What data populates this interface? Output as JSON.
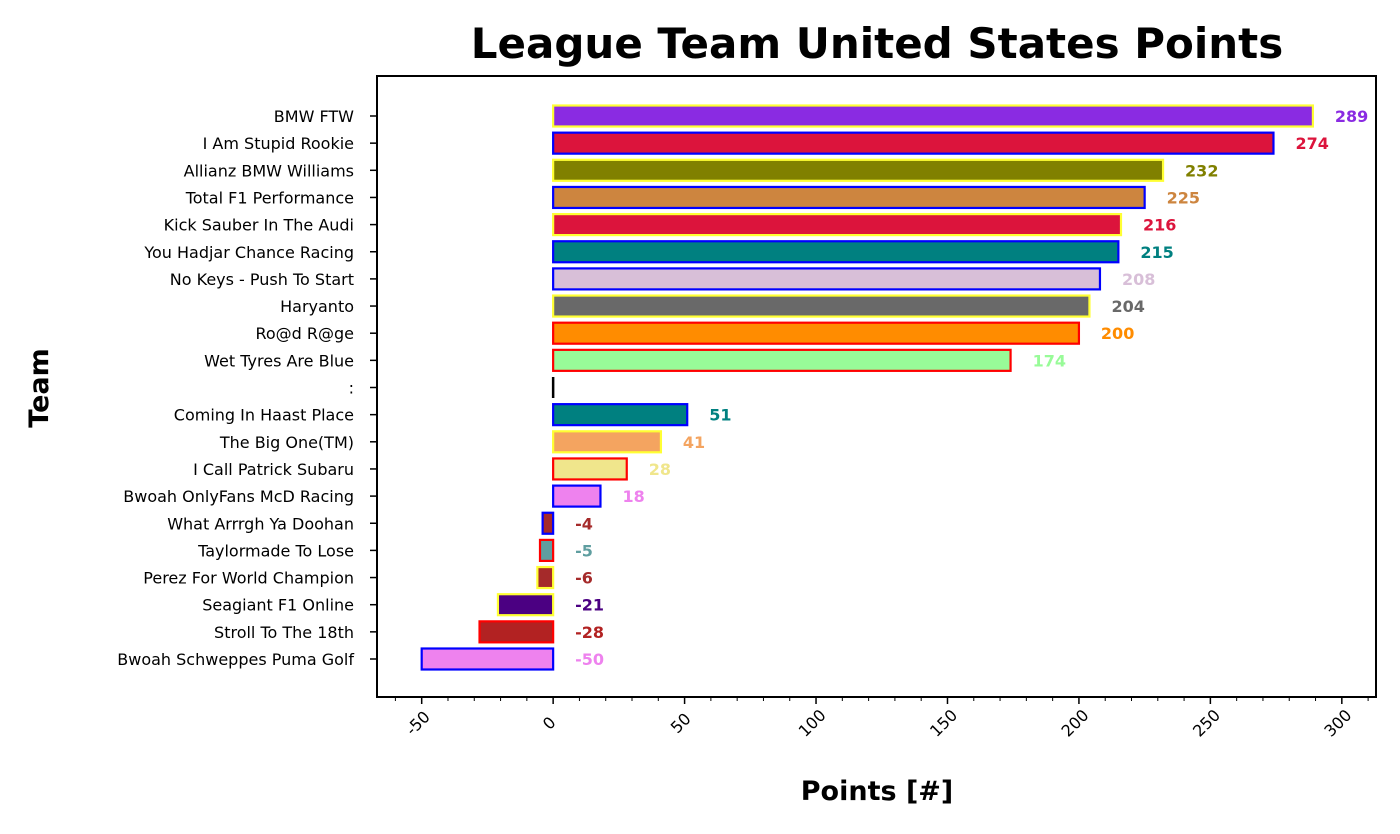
{
  "chart_data": {
    "type": "bar",
    "orientation": "horizontal",
    "title": "League Team United States Points",
    "xlabel": "Points [#]",
    "ylabel": "Team",
    "xlim": [
      -67,
      313
    ],
    "xticks": [
      -50,
      0,
      50,
      100,
      150,
      200,
      250,
      300
    ],
    "grid": false,
    "legend": "none",
    "bars": [
      {
        "label": "BMW FTW",
        "value": 289,
        "value_text": "289",
        "fill": "#8a2be2",
        "edge": "#ffff33"
      },
      {
        "label": "I Am Stupid Rookie",
        "value": 274,
        "value_text": "274",
        "fill": "#dc143c",
        "edge": "#0000ff"
      },
      {
        "label": "Allianz BMW Williams",
        "value": 232,
        "value_text": "232",
        "fill": "#808000",
        "edge": "#ffff33"
      },
      {
        "label": "Total F1 Performance",
        "value": 225,
        "value_text": "225",
        "fill": "#cd853f",
        "edge": "#0000ff"
      },
      {
        "label": "Kick Sauber In The Audi",
        "value": 216,
        "value_text": "216",
        "fill": "#dc143c",
        "edge": "#ffff33"
      },
      {
        "label": "You Hadjar Chance Racing",
        "value": 215,
        "value_text": "215",
        "fill": "#008080",
        "edge": "#0000ff"
      },
      {
        "label": "No Keys - Push To Start",
        "value": 208,
        "value_text": "208",
        "fill": "#d8bfd8",
        "edge": "#0000ff"
      },
      {
        "label": "Haryanto",
        "value": 204,
        "value_text": "204",
        "fill": "#696969",
        "edge": "#ffff33"
      },
      {
        "label": "Ro@d R@ge",
        "value": 200,
        "value_text": "200",
        "fill": "#ff8c00",
        "edge": "#ff0000"
      },
      {
        "label": "Wet Tyres Are Blue",
        "value": 174,
        "value_text": "174",
        "fill": "#98fb98",
        "edge": "#ff0000"
      },
      {
        "label": ":",
        "value": 0,
        "value_text": "",
        "fill": "#000000",
        "edge": "#000000"
      },
      {
        "label": "Coming In Haast Place",
        "value": 51,
        "value_text": "51",
        "fill": "#008080",
        "edge": "#0000ff"
      },
      {
        "label": "The Big One(TM)",
        "value": 41,
        "value_text": "41",
        "fill": "#f4a460",
        "edge": "#ffff33"
      },
      {
        "label": "I Call Patrick Subaru",
        "value": 28,
        "value_text": "28",
        "fill": "#f0e68c",
        "edge": "#ff0000"
      },
      {
        "label": "Bwoah OnlyFans McD Racing",
        "value": 18,
        "value_text": "18",
        "fill": "#ee82ee",
        "edge": "#0000ff"
      },
      {
        "label": "What Arrrgh Ya Doohan",
        "value": -4,
        "value_text": "-4",
        "fill": "#a52a2a",
        "edge": "#0000ff"
      },
      {
        "label": "Taylormade To Lose",
        "value": -5,
        "value_text": "-5",
        "fill": "#5f9ea0",
        "edge": "#ff0000"
      },
      {
        "label": "Perez For World Champion",
        "value": -6,
        "value_text": "-6",
        "fill": "#a52a2a",
        "edge": "#ffff33"
      },
      {
        "label": "Seagiant F1 Online",
        "value": -21,
        "value_text": "-21",
        "fill": "#4b0082",
        "edge": "#ffff33"
      },
      {
        "label": "Stroll To The 18th",
        "value": -28,
        "value_text": "-28",
        "fill": "#b22222",
        "edge": "#ff0000"
      },
      {
        "label": "Bwoah Schweppes Puma Golf",
        "value": -50,
        "value_text": "-50",
        "fill": "#ee82ee",
        "edge": "#0000ff"
      }
    ]
  }
}
